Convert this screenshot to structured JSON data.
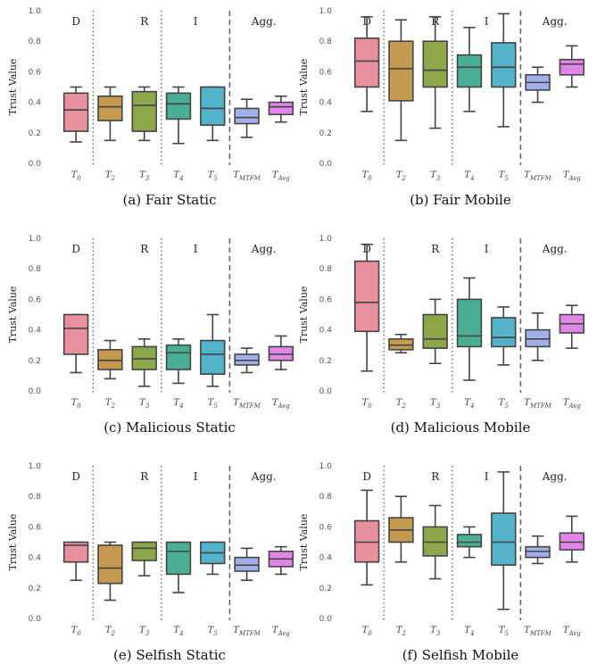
{
  "ylabel": "Trust Value",
  "yticks": [
    "0.0",
    "0.2",
    "0.4",
    "0.6",
    "0.8",
    "1.0"
  ],
  "regions": [
    "D",
    "R",
    "I",
    "Agg."
  ],
  "categories": [
    {
      "main": "T",
      "sub": "0"
    },
    {
      "main": "T",
      "sub": "2"
    },
    {
      "main": "T",
      "sub": "3"
    },
    {
      "main": "T",
      "sub": "4"
    },
    {
      "main": "T",
      "sub": "5"
    },
    {
      "main": "T",
      "sub": "MTFM"
    },
    {
      "main": "T",
      "sub": "Avg"
    }
  ],
  "colors": [
    "#e8909e",
    "#c49a50",
    "#8da84a",
    "#4aae94",
    "#52b3c9",
    "#a2aee8",
    "#e086e6"
  ],
  "chart_data": [
    {
      "type": "box",
      "caption": "(a) Fair Static",
      "ylim": [
        0,
        1
      ],
      "boxes": [
        {
          "min": 0.14,
          "q1": 0.21,
          "median": 0.35,
          "q3": 0.46,
          "max": 0.5
        },
        {
          "min": 0.15,
          "q1": 0.28,
          "median": 0.37,
          "q3": 0.44,
          "max": 0.5
        },
        {
          "min": 0.15,
          "q1": 0.21,
          "median": 0.38,
          "q3": 0.47,
          "max": 0.5
        },
        {
          "min": 0.13,
          "q1": 0.29,
          "median": 0.39,
          "q3": 0.46,
          "max": 0.5
        },
        {
          "min": 0.15,
          "q1": 0.25,
          "median": 0.36,
          "q3": 0.5,
          "max": 0.5
        },
        {
          "min": 0.17,
          "q1": 0.26,
          "median": 0.3,
          "q3": 0.36,
          "max": 0.42
        },
        {
          "min": 0.27,
          "q1": 0.32,
          "median": 0.37,
          "q3": 0.4,
          "max": 0.44
        }
      ]
    },
    {
      "type": "box",
      "caption": "(b) Fair Mobile",
      "ylim": [
        0,
        1
      ],
      "boxes": [
        {
          "min": 0.34,
          "q1": 0.5,
          "median": 0.67,
          "q3": 0.82,
          "max": 0.96
        },
        {
          "min": 0.15,
          "q1": 0.41,
          "median": 0.62,
          "q3": 0.8,
          "max": 0.94
        },
        {
          "min": 0.23,
          "q1": 0.5,
          "median": 0.61,
          "q3": 0.8,
          "max": 0.96
        },
        {
          "min": 0.34,
          "q1": 0.5,
          "median": 0.63,
          "q3": 0.71,
          "max": 0.89
        },
        {
          "min": 0.24,
          "q1": 0.5,
          "median": 0.63,
          "q3": 0.79,
          "max": 0.98
        },
        {
          "min": 0.4,
          "q1": 0.48,
          "median": 0.53,
          "q3": 0.58,
          "max": 0.63
        },
        {
          "min": 0.5,
          "q1": 0.58,
          "median": 0.65,
          "q3": 0.68,
          "max": 0.77
        }
      ]
    },
    {
      "type": "box",
      "caption": "(c) Malicious Static",
      "ylim": [
        0,
        1
      ],
      "boxes": [
        {
          "min": 0.12,
          "q1": 0.24,
          "median": 0.41,
          "q3": 0.5,
          "max": 0.5
        },
        {
          "min": 0.08,
          "q1": 0.14,
          "median": 0.2,
          "q3": 0.27,
          "max": 0.33
        },
        {
          "min": 0.03,
          "q1": 0.14,
          "median": 0.21,
          "q3": 0.29,
          "max": 0.34
        },
        {
          "min": 0.05,
          "q1": 0.14,
          "median": 0.25,
          "q3": 0.3,
          "max": 0.34
        },
        {
          "min": 0.03,
          "q1": 0.11,
          "median": 0.24,
          "q3": 0.33,
          "max": 0.5
        },
        {
          "min": 0.12,
          "q1": 0.17,
          "median": 0.2,
          "q3": 0.24,
          "max": 0.28
        },
        {
          "min": 0.14,
          "q1": 0.2,
          "median": 0.24,
          "q3": 0.29,
          "max": 0.36
        }
      ]
    },
    {
      "type": "box",
      "caption": "(d) Malicious Mobile",
      "ylim": [
        0,
        1
      ],
      "boxes": [
        {
          "min": 0.13,
          "q1": 0.39,
          "median": 0.58,
          "q3": 0.85,
          "max": 0.96
        },
        {
          "min": 0.25,
          "q1": 0.27,
          "median": 0.3,
          "q3": 0.34,
          "max": 0.37
        },
        {
          "min": 0.18,
          "q1": 0.28,
          "median": 0.34,
          "q3": 0.5,
          "max": 0.6
        },
        {
          "min": 0.07,
          "q1": 0.29,
          "median": 0.36,
          "q3": 0.6,
          "max": 0.74
        },
        {
          "min": 0.17,
          "q1": 0.29,
          "median": 0.35,
          "q3": 0.48,
          "max": 0.55
        },
        {
          "min": 0.2,
          "q1": 0.29,
          "median": 0.34,
          "q3": 0.4,
          "max": 0.51
        },
        {
          "min": 0.28,
          "q1": 0.38,
          "median": 0.44,
          "q3": 0.5,
          "max": 0.56
        }
      ]
    },
    {
      "type": "box",
      "caption": "(e) Selfish Static",
      "ylim": [
        0,
        1
      ],
      "boxes": [
        {
          "min": 0.25,
          "q1": 0.37,
          "median": 0.48,
          "q3": 0.5,
          "max": 0.5
        },
        {
          "min": 0.12,
          "q1": 0.23,
          "median": 0.33,
          "q3": 0.48,
          "max": 0.5
        },
        {
          "min": 0.28,
          "q1": 0.38,
          "median": 0.46,
          "q3": 0.5,
          "max": 0.5
        },
        {
          "min": 0.17,
          "q1": 0.29,
          "median": 0.44,
          "q3": 0.5,
          "max": 0.5
        },
        {
          "min": 0.29,
          "q1": 0.36,
          "median": 0.43,
          "q3": 0.5,
          "max": 0.5
        },
        {
          "min": 0.25,
          "q1": 0.31,
          "median": 0.35,
          "q3": 0.4,
          "max": 0.46
        },
        {
          "min": 0.29,
          "q1": 0.34,
          "median": 0.39,
          "q3": 0.44,
          "max": 0.47
        }
      ]
    },
    {
      "type": "box",
      "caption": "(f) Selfish Mobile",
      "ylim": [
        0,
        1
      ],
      "boxes": [
        {
          "min": 0.22,
          "q1": 0.37,
          "median": 0.5,
          "q3": 0.64,
          "max": 0.84
        },
        {
          "min": 0.37,
          "q1": 0.5,
          "median": 0.58,
          "q3": 0.66,
          "max": 0.8
        },
        {
          "min": 0.26,
          "q1": 0.41,
          "median": 0.5,
          "q3": 0.6,
          "max": 0.74
        },
        {
          "min": 0.4,
          "q1": 0.47,
          "median": 0.5,
          "q3": 0.55,
          "max": 0.6
        },
        {
          "min": 0.06,
          "q1": 0.35,
          "median": 0.5,
          "q3": 0.69,
          "max": 0.96
        },
        {
          "min": 0.36,
          "q1": 0.4,
          "median": 0.44,
          "q3": 0.47,
          "max": 0.54
        },
        {
          "min": 0.37,
          "q1": 0.45,
          "median": 0.5,
          "q3": 0.56,
          "max": 0.67
        }
      ]
    }
  ]
}
